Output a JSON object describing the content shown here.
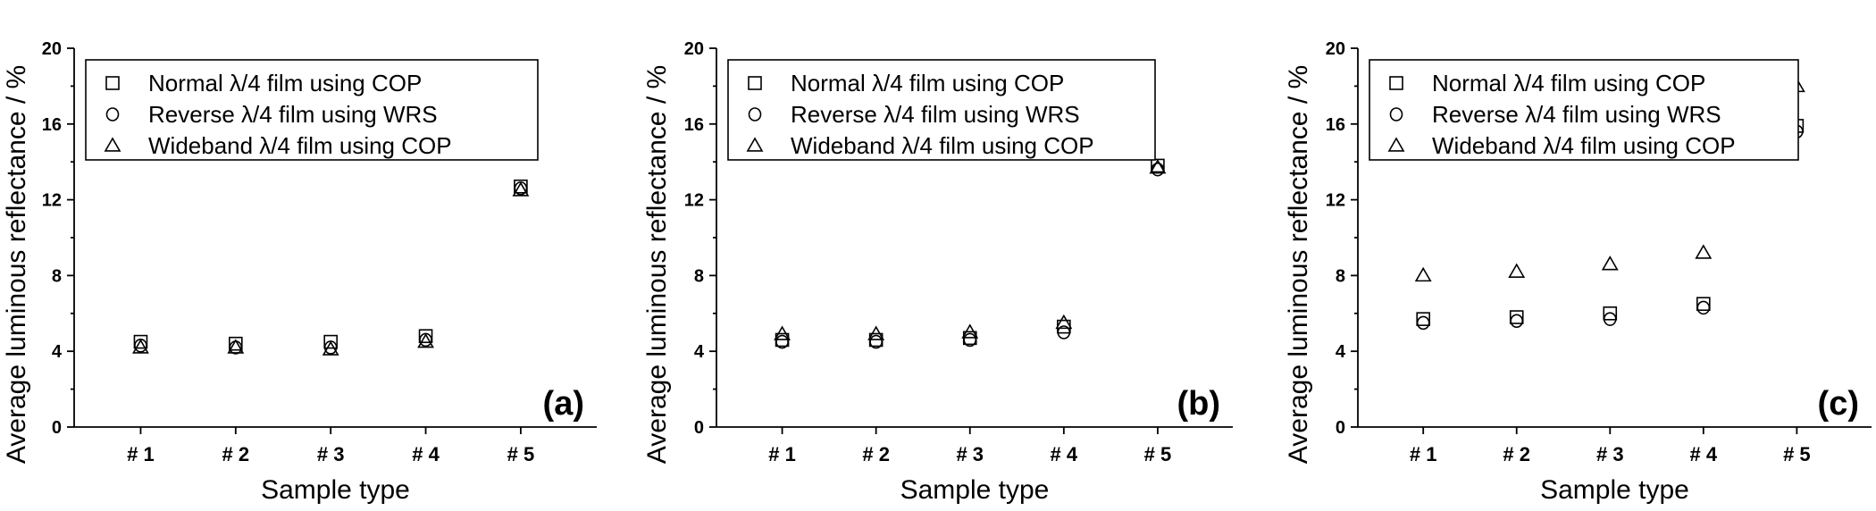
{
  "chart_data": [
    {
      "type": "scatter",
      "panel_label": "(a)",
      "xlabel": "Sample type",
      "ylabel": "Average luminous reflectance / %",
      "categories": [
        "# 1",
        "# 2",
        "# 3",
        "# 4",
        "# 5"
      ],
      "ylim": [
        0,
        20
      ],
      "yticks": [
        0,
        4,
        8,
        12,
        16,
        20
      ],
      "grid": false,
      "legend_position": "top-left",
      "series": [
        {
          "name": "Normal λ/4 film using COP",
          "marker": "square",
          "values": [
            4.5,
            4.4,
            4.5,
            4.8,
            12.7
          ]
        },
        {
          "name": "Reverse λ/4 film using WRS",
          "marker": "circle",
          "values": [
            4.3,
            4.2,
            4.2,
            4.6,
            12.6
          ]
        },
        {
          "name": "Wideband λ/4 film using COP",
          "marker": "triangle",
          "values": [
            4.2,
            4.2,
            4.1,
            4.5,
            12.5
          ]
        }
      ]
    },
    {
      "type": "scatter",
      "panel_label": "(b)",
      "xlabel": "Sample type",
      "ylabel": "Average luminous reflectance / %",
      "categories": [
        "# 1",
        "# 2",
        "# 3",
        "# 4",
        "# 5"
      ],
      "ylim": [
        0,
        20
      ],
      "yticks": [
        0,
        4,
        8,
        12,
        16,
        20
      ],
      "grid": false,
      "legend_position": "top-left",
      "series": [
        {
          "name": "Normal λ/4 film using COP",
          "marker": "square",
          "values": [
            4.6,
            4.6,
            4.7,
            5.3,
            13.8
          ]
        },
        {
          "name": "Reverse λ/4 film using WRS",
          "marker": "circle",
          "values": [
            4.5,
            4.5,
            4.6,
            5.0,
            13.6
          ]
        },
        {
          "name": "Wideband λ/4 film using COP",
          "marker": "triangle",
          "values": [
            4.9,
            4.9,
            5.0,
            5.5,
            13.7
          ]
        }
      ]
    },
    {
      "type": "scatter",
      "panel_label": "(c)",
      "xlabel": "Sample type",
      "ylabel": "Average luminous reflectance / %",
      "categories": [
        "# 1",
        "# 2",
        "# 3",
        "# 4",
        "# 5"
      ],
      "ylim": [
        0,
        20
      ],
      "yticks": [
        0,
        4,
        8,
        12,
        16,
        20
      ],
      "grid": false,
      "legend_position": "top-left",
      "series": [
        {
          "name": "Normal λ/4 film using COP",
          "marker": "square",
          "values": [
            5.7,
            5.8,
            6.0,
            6.5,
            15.9
          ]
        },
        {
          "name": "Reverse λ/4 film using WRS",
          "marker": "circle",
          "values": [
            5.5,
            5.6,
            5.7,
            6.3,
            15.6
          ]
        },
        {
          "name": "Wideband λ/4 film using COP",
          "marker": "triangle",
          "values": [
            8.0,
            8.2,
            8.6,
            9.2,
            18.0
          ]
        }
      ]
    }
  ]
}
